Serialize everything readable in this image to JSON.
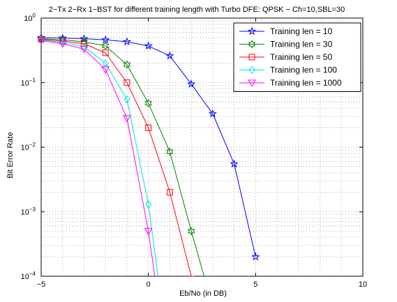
{
  "chart_data": {
    "type": "line",
    "title": "2−Tx 2−Rx 1−BST for different training length with Turbo DFE: QPSK − Ch=10,SBL=30",
    "xlabel": "Eb/No (in DB)",
    "ylabel": "Bit Error Rate",
    "xlim": [
      -5,
      10
    ],
    "ylim": [
      0.0001,
      1
    ],
    "yscale": "log",
    "grid": "dotted major and minor",
    "legend_position": "top-right",
    "x_ticks": [
      -5,
      0,
      5,
      10
    ],
    "x_tick_labels": [
      "−5",
      "0",
      "5",
      "10"
    ],
    "y_ticks": [
      {
        "value": 1,
        "base": "10",
        "exp": "0"
      },
      {
        "value": 0.1,
        "base": "10",
        "exp": "−1"
      },
      {
        "value": 0.01,
        "base": "10",
        "exp": "−2"
      },
      {
        "value": 0.001,
        "base": "10",
        "exp": "−3"
      },
      {
        "value": 0.0001,
        "base": "10",
        "exp": "−4"
      }
    ],
    "series": [
      {
        "name": "Training len = 10",
        "color": "#0000ff",
        "marker": "star",
        "x": [
          -5,
          -4,
          -3,
          -2,
          -1,
          0,
          1,
          2,
          3,
          4,
          5
        ],
        "y": [
          0.5,
          0.49,
          0.48,
          0.46,
          0.43,
          0.37,
          0.26,
          0.095,
          0.033,
          0.0055,
          0.0002
        ]
      },
      {
        "name": "Training len = 30",
        "color": "#008000",
        "marker": "hexagram",
        "x": [
          -5,
          -4,
          -3,
          -2,
          -1,
          0,
          1,
          2,
          2.6
        ],
        "y": [
          0.48,
          0.46,
          0.43,
          0.37,
          0.19,
          0.048,
          0.0085,
          0.0005,
          0.0001
        ]
      },
      {
        "name": "Training len = 50",
        "color": "#ff0000",
        "marker": "square",
        "x": [
          -5,
          -4,
          -3,
          -2,
          -1,
          0,
          1,
          2,
          2.15
        ],
        "y": [
          0.47,
          0.44,
          0.4,
          0.29,
          0.1,
          0.02,
          0.002,
          0.0001,
          0.0001
        ]
      },
      {
        "name": "Training len = 100",
        "color": "#00e0e0",
        "marker": "diamond",
        "x": [
          -5,
          -4,
          -3,
          -2,
          -1,
          0,
          0.45
        ],
        "y": [
          0.46,
          0.42,
          0.36,
          0.2,
          0.055,
          0.0013,
          0.0001
        ]
      },
      {
        "name": "Training len = 1000",
        "color": "#ff00ff",
        "marker": "triangle-down",
        "x": [
          -5,
          -4,
          -3,
          -2,
          -1,
          0,
          0.3
        ],
        "y": [
          0.45,
          0.4,
          0.33,
          0.16,
          0.028,
          0.0005,
          0.0001
        ]
      }
    ]
  }
}
